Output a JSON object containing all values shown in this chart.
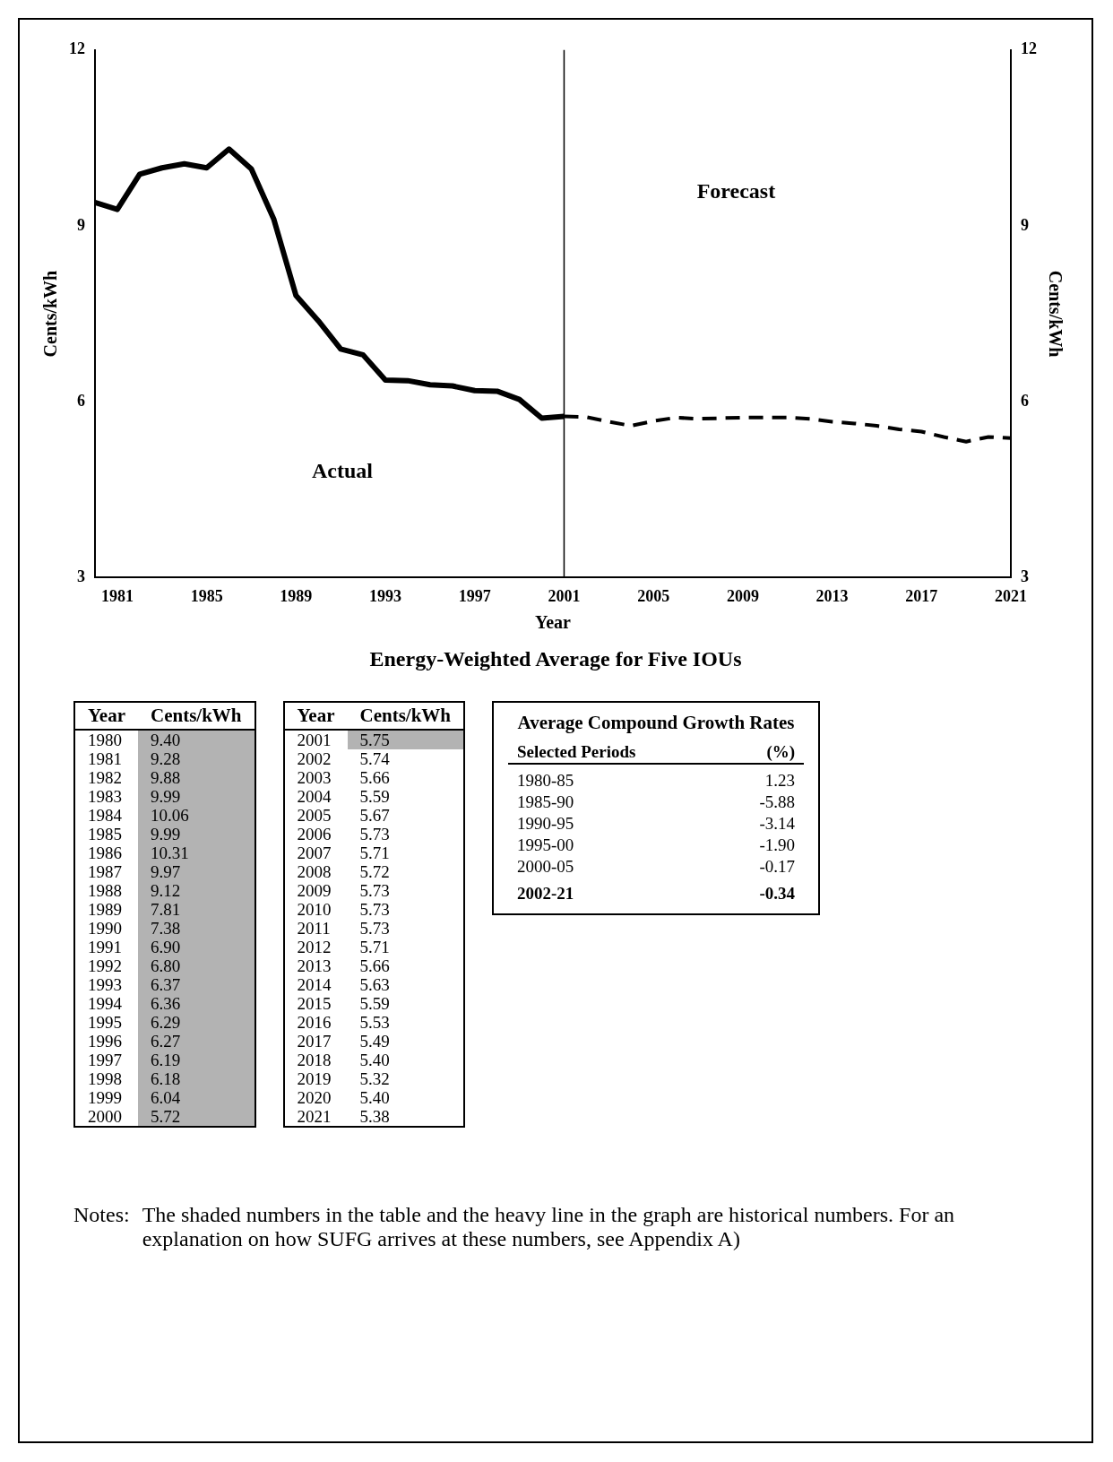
{
  "chart_data": {
    "type": "line",
    "title": "Energy-Weighted Average for Five IOUs",
    "xlabel": "Year",
    "ylabel": "Cents/kWh",
    "y2label": "Cents/kWh",
    "xlim": [
      1980,
      2021
    ],
    "xticks": [
      1981,
      1985,
      1989,
      1993,
      1997,
      2001,
      2005,
      2009,
      2013,
      2017,
      2021
    ],
    "ylim": [
      3,
      12
    ],
    "yticks": [
      3,
      6,
      9,
      12
    ],
    "y2lim": [
      3,
      12
    ],
    "y2ticks": [
      3,
      6,
      9,
      12
    ],
    "series": [
      {
        "color": "#000000",
        "line_style": "solid",
        "x": [
          1980,
          1981,
          1982,
          1983,
          1984,
          1985,
          1986,
          1987,
          1988,
          1989,
          1990,
          1991,
          1992,
          1993,
          1994,
          1995,
          1996,
          1997,
          1998,
          1999,
          2000,
          2001
        ],
        "values": [
          9.4,
          9.28,
          9.88,
          9.99,
          10.06,
          9.99,
          10.31,
          9.97,
          9.12,
          7.81,
          7.38,
          6.9,
          6.8,
          6.37,
          6.36,
          6.29,
          6.27,
          6.19,
          6.18,
          6.04,
          5.72,
          5.75
        ]
      },
      {
        "color": "#000000",
        "line_style": "dashed",
        "x": [
          2001,
          2002,
          2003,
          2004,
          2005,
          2006,
          2007,
          2008,
          2009,
          2010,
          2011,
          2012,
          2013,
          2014,
          2015,
          2016,
          2017,
          2018,
          2019,
          2020,
          2021
        ],
        "values": [
          5.75,
          5.74,
          5.66,
          5.59,
          5.67,
          5.73,
          5.71,
          5.72,
          5.73,
          5.73,
          5.73,
          5.71,
          5.66,
          5.63,
          5.59,
          5.53,
          5.49,
          5.4,
          5.32,
          5.4,
          5.38
        ]
      }
    ],
    "ref_lines": [
      {
        "axis": "x",
        "value": 2001,
        "color": "#000000"
      }
    ],
    "annotations": [
      "Actual",
      "Forecast",
      "1980",
      "9.40",
      "1981",
      "9.28",
      "1982",
      "9.88",
      "1983",
      "9.99",
      "1984",
      "10.06",
      "1985",
      "9.99",
      "1986",
      "10.31",
      "1987",
      "9.97",
      "1988",
      "9.12",
      "1989",
      "7.81",
      "1990",
      "7.38",
      "1991",
      "6.90",
      "1992",
      "6.80",
      "1993",
      "6.37",
      "1994",
      "6.36",
      "1995",
      "6.29",
      "1996",
      "6.27",
      "1997",
      "6.19",
      "1998",
      "6.18",
      "1999",
      "6.04",
      "2000",
      "5.72",
      "2001",
      "5.75",
      "2002",
      "5.74",
      "2003",
      "5.66",
      "2004",
      "5.59",
      "2005",
      "5.67",
      "2006",
      "5.73",
      "2007",
      "5.71",
      "2008",
      "5.72",
      "2009",
      "5.73",
      "2010",
      "5.73",
      "2011",
      "5.73",
      "2012",
      "5.71",
      "2013",
      "5.66",
      "2014",
      "5.63",
      "2015",
      "5.59",
      "2016",
      "5.53",
      "2017",
      "5.49",
      "2018",
      "5.40",
      "2019",
      "5.32",
      "2020",
      "5.40",
      "2021",
      "5.38",
      "Average Compound Growth Rates",
      "Selected Periods",
      "(%)",
      "1980-85",
      "1.23",
      "1985-90",
      "-5.88",
      "1990-95",
      "-3.14",
      "1995-00",
      "-1.90",
      "2000-05",
      "-0.17",
      "2002-21",
      "-0.34",
      "Notes:",
      "The shaded numbers in the table and the heavy line in the graph are historical numbers.  For an explanation on how SUFG arrives at these numbers, see Appendix A)"
    ]
  }
}
